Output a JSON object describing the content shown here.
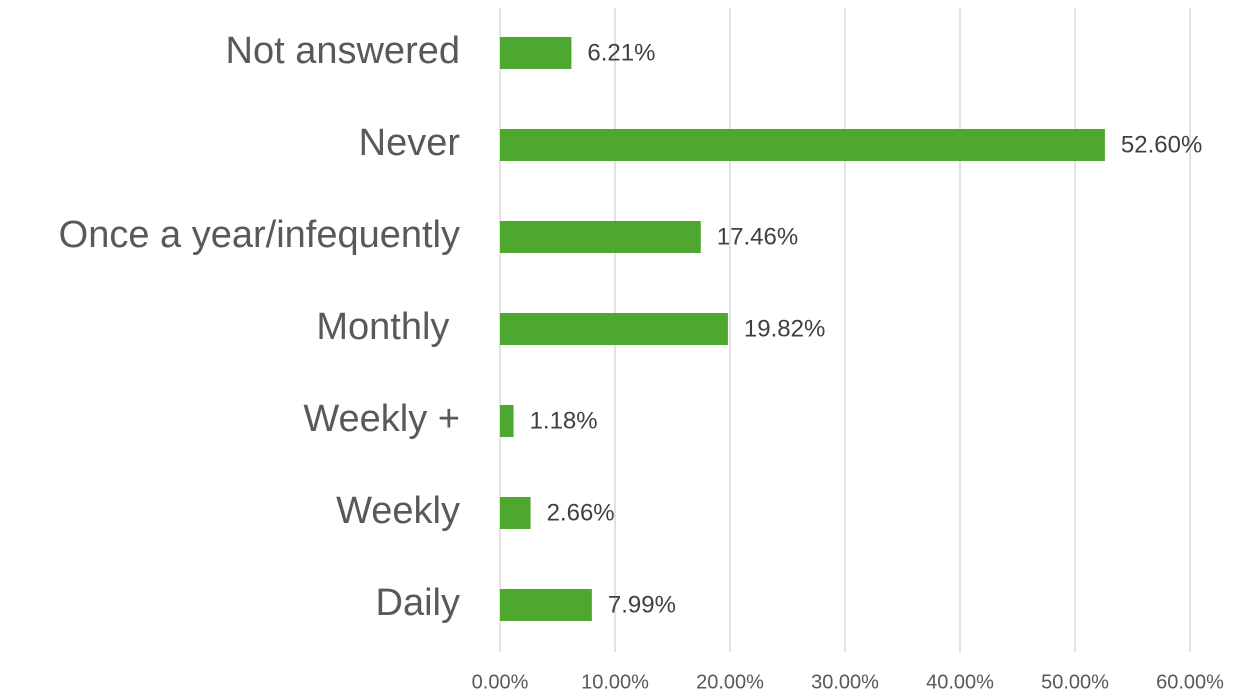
{
  "chart_data": {
    "type": "hbar",
    "categories": [
      "Not answered",
      "Never",
      "Once a year/infequently",
      "Monthly ",
      "Weekly +",
      "Weekly",
      "Daily"
    ],
    "values": [
      6.21,
      52.6,
      17.46,
      19.82,
      1.18,
      2.66,
      7.99
    ],
    "value_labels": [
      "6.21%",
      "52.60%",
      "17.46%",
      "19.82%",
      "1.18%",
      "2.66%",
      "7.99%"
    ],
    "color": "#4ea72e",
    "xlim": [
      0,
      60
    ],
    "xticks": [
      {
        "value": 0,
        "label": "0.00%"
      },
      {
        "value": 10,
        "label": "10.00%"
      },
      {
        "value": 20,
        "label": "20.00%"
      },
      {
        "value": 30,
        "label": "30.00%"
      },
      {
        "value": 40,
        "label": "40.00%"
      },
      {
        "value": 50,
        "label": "50.00%"
      },
      {
        "value": 60,
        "label": "60.00%"
      }
    ],
    "grid": true
  }
}
